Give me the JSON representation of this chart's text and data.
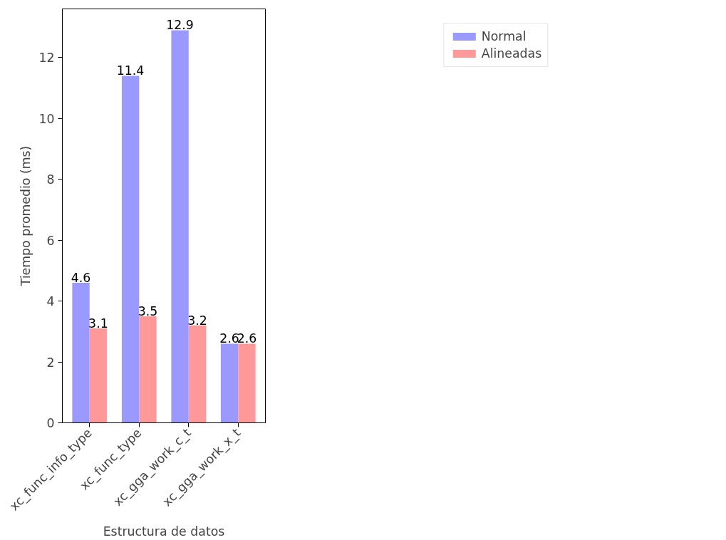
{
  "chart_data": {
    "type": "bar",
    "xlabel": "Estructura de datos",
    "ylabel": "Tiempo promedio (ms)",
    "categories": [
      "xc_func_info_type",
      "xc_func_type",
      "xc_gga_work_c_t",
      "xc_gga_work_x_t"
    ],
    "series": [
      {
        "name": "Normal",
        "color": "#9999ff",
        "values": [
          4.6,
          11.4,
          12.9,
          2.6
        ]
      },
      {
        "name": "Alineadas",
        "color": "#ff9999",
        "values": [
          3.1,
          3.5,
          3.2,
          2.6
        ]
      }
    ],
    "ylim": [
      0,
      13.6
    ],
    "yticks": [
      0,
      2,
      4,
      6,
      8,
      10,
      12
    ],
    "data_labels": true,
    "grid": false,
    "legend": "top right"
  }
}
